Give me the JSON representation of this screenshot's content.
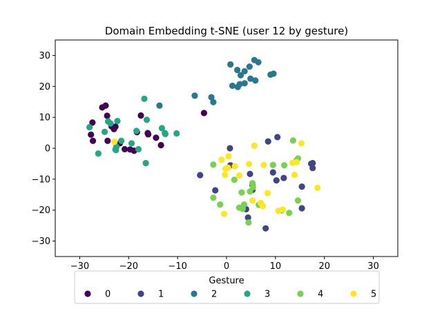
{
  "chart_data": {
    "type": "scatter",
    "title": "Domain Embedding t-SNE (user 12 by gesture)",
    "xlabel": "",
    "ylabel": "",
    "xlim": [
      -35,
      35
    ],
    "ylim": [
      -35,
      35
    ],
    "xticks": [
      -30,
      -20,
      -10,
      0,
      10,
      20,
      30
    ],
    "yticks": [
      -30,
      -20,
      -10,
      0,
      10,
      20,
      30
    ],
    "grid": false,
    "legend": {
      "title": "Gesture",
      "placement": "below plot, horizontal"
    },
    "series": [
      {
        "name": "0",
        "color": "#440154",
        "points": [
          [
            -27.4,
            8.3
          ],
          [
            -27.7,
            4.4
          ],
          [
            -27.3,
            2.4
          ],
          [
            -25.4,
            13.2
          ],
          [
            -24.7,
            13.8
          ],
          [
            -24.4,
            10.5
          ],
          [
            -24.3,
            2.4
          ],
          [
            -23.5,
            7.1
          ],
          [
            -23.0,
            6.2
          ],
          [
            -22.7,
            7.0
          ],
          [
            -21.8,
            1.6
          ],
          [
            -20.8,
            -0.3
          ],
          [
            -19.7,
            -0.4
          ],
          [
            -18.9,
            -0.8
          ],
          [
            -18.3,
            5.2
          ],
          [
            -17.5,
            10.6
          ],
          [
            -16.1,
            4.9
          ],
          [
            -16.0,
            4.5
          ],
          [
            -14.4,
            3.4
          ],
          [
            -13.4,
            1.0
          ],
          [
            -4.6,
            11.4
          ]
        ]
      },
      {
        "name": "1",
        "color": "#414487",
        "points": [
          [
            -5.4,
            -8.7
          ],
          [
            -2.3,
            -13.6
          ],
          [
            0.7,
            0.0
          ],
          [
            0.8,
            -5.5
          ],
          [
            4.0,
            -19.7
          ],
          [
            4.4,
            -22.4
          ],
          [
            4.8,
            -8.3
          ],
          [
            5.3,
            -11.9
          ],
          [
            5.3,
            -13.5
          ],
          [
            8.0,
            -25.9
          ],
          [
            8.5,
            2.2
          ],
          [
            9.5,
            -7.8
          ],
          [
            10.2,
            -10.4
          ],
          [
            10.4,
            3.6
          ],
          [
            11.7,
            -9.6
          ],
          [
            15.4,
            -12.4
          ],
          [
            15.4,
            -19.4
          ],
          [
            17.3,
            -5.0
          ],
          [
            17.6,
            -4.8
          ],
          [
            17.6,
            -6.4
          ]
        ]
      },
      {
        "name": "2",
        "color": "#2a788e",
        "points": [
          [
            -13.7,
            13.8
          ],
          [
            -6.5,
            17.0
          ],
          [
            -3.1,
            16.5
          ],
          [
            -2.7,
            14.9
          ],
          [
            0.8,
            27.1
          ],
          [
            1.2,
            20.2
          ],
          [
            2.2,
            25.3
          ],
          [
            2.3,
            19.8
          ],
          [
            2.7,
            20.7
          ],
          [
            2.9,
            23.6
          ],
          [
            3.7,
            24.9
          ],
          [
            3.7,
            21.0
          ],
          [
            4.7,
            26.4
          ],
          [
            4.9,
            22.5
          ],
          [
            5.7,
            28.5
          ],
          [
            5.9,
            21.9
          ],
          [
            6.5,
            27.8
          ],
          [
            9.0,
            23.8
          ],
          [
            9.6,
            24.1
          ]
        ]
      },
      {
        "name": "3",
        "color": "#22a884",
        "points": [
          [
            -28.0,
            6.8
          ],
          [
            -26.2,
            -1.7
          ],
          [
            -24.9,
            5.3
          ],
          [
            -24.2,
            8.7
          ],
          [
            -23.7,
            8.0
          ],
          [
            -22.7,
            -0.4
          ],
          [
            -22.6,
            -0.6
          ],
          [
            -22.5,
            0.5
          ],
          [
            -22.3,
            8.8
          ],
          [
            -21.5,
            2.4
          ],
          [
            -19.4,
            1.6
          ],
          [
            -18.4,
            5.6
          ],
          [
            -18.0,
            -0.3
          ],
          [
            -16.8,
            16.0
          ],
          [
            -16.5,
            -4.8
          ],
          [
            -16.3,
            9.2
          ],
          [
            -13.2,
            6.5
          ],
          [
            -12.6,
            4.9
          ],
          [
            -12.5,
            4.6
          ],
          [
            -10.2,
            4.8
          ]
        ]
      },
      {
        "name": "4",
        "color": "#7ad151",
        "points": [
          [
            -2.7,
            -5.3
          ],
          [
            -2.7,
            -16.0
          ],
          [
            -1.3,
            -18.2
          ],
          [
            1.6,
            -10.2
          ],
          [
            2.6,
            -19.2
          ],
          [
            3.1,
            -14.3
          ],
          [
            3.3,
            -19.6
          ],
          [
            3.6,
            -18.2
          ],
          [
            4.5,
            -24.0
          ],
          [
            4.8,
            -14.0
          ],
          [
            5.3,
            -11.3
          ],
          [
            5.4,
            -12.6
          ],
          [
            6.6,
            -18.3
          ],
          [
            9.5,
            -5.4
          ],
          [
            11.3,
            -20.1
          ],
          [
            11.8,
            -5.5
          ],
          [
            12.8,
            -20.9
          ],
          [
            13.6,
            2.5
          ],
          [
            14.3,
            -3.9
          ],
          [
            14.6,
            -16.9
          ],
          [
            14.6,
            -3.3
          ]
        ]
      },
      {
        "name": "5",
        "color": "#fde725",
        "points": [
          [
            -22.9,
            2.1
          ],
          [
            -1.0,
            -3.7
          ],
          [
            -0.5,
            -21.2
          ],
          [
            -0.3,
            -8.6
          ],
          [
            -0.2,
            -6.6
          ],
          [
            0.3,
            -6.3
          ],
          [
            0.4,
            -2.6
          ],
          [
            1.7,
            -5.8
          ],
          [
            2.6,
            -8.8
          ],
          [
            4.6,
            -5.1
          ],
          [
            5.3,
            -16.9
          ],
          [
            5.7,
            0.8
          ],
          [
            7.0,
            -17.7
          ],
          [
            7.4,
            -18.7
          ],
          [
            7.6,
            -5.4
          ],
          [
            8.4,
            -14.5
          ],
          [
            10.6,
            -20.2
          ],
          [
            11.5,
            -19.8
          ],
          [
            13.5,
            -4.7
          ],
          [
            13.9,
            -8.6
          ],
          [
            14.3,
            -4.5
          ],
          [
            15.3,
            1.6
          ],
          [
            18.6,
            -12.8
          ]
        ]
      }
    ]
  }
}
